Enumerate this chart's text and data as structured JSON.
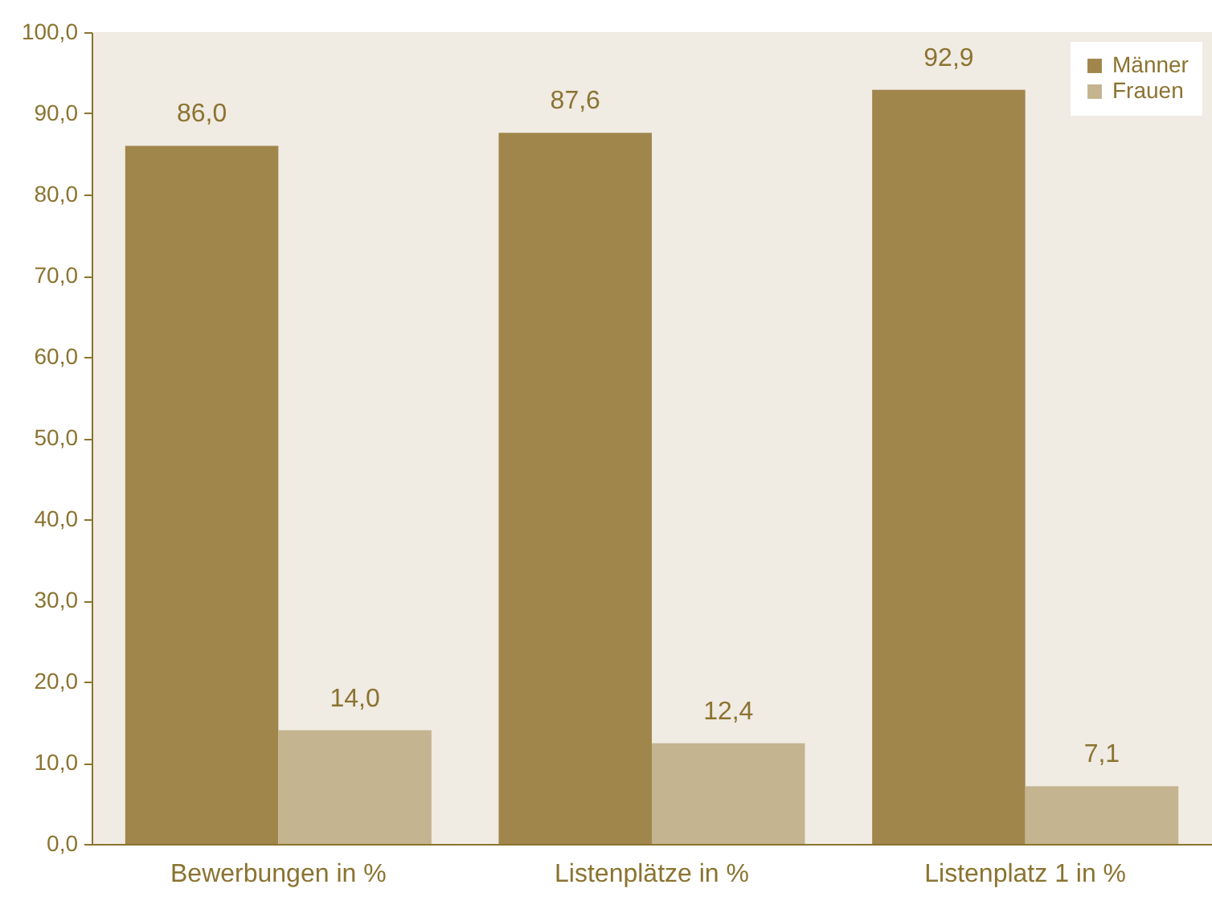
{
  "chart_data": {
    "type": "bar",
    "categories": [
      "Bewerbungen in %",
      "Listenplätze in %",
      "Listenplatz 1 in %"
    ],
    "series": [
      {
        "name": "Männer",
        "color": "#a0864b",
        "values": [
          86.0,
          87.6,
          92.9
        ],
        "value_labels": [
          "86,0",
          "87,6",
          "92,9"
        ]
      },
      {
        "name": "Frauen",
        "color": "#c4b48f",
        "values": [
          14.0,
          12.4,
          7.1
        ],
        "value_labels": [
          "14,0",
          "12,4",
          "7,1"
        ]
      }
    ],
    "ylim": [
      0,
      100
    ],
    "yticks": [
      {
        "value": 0,
        "label": "0,0"
      },
      {
        "value": 10,
        "label": "10,0"
      },
      {
        "value": 20,
        "label": "20,0"
      },
      {
        "value": 30,
        "label": "30,0"
      },
      {
        "value": 40,
        "label": "40,0"
      },
      {
        "value": 50,
        "label": "50,0"
      },
      {
        "value": 60,
        "label": "60,0"
      },
      {
        "value": 70,
        "label": "70,0"
      },
      {
        "value": 80,
        "label": "80,0"
      },
      {
        "value": 90,
        "label": "90,0"
      },
      {
        "value": 100,
        "label": "100,0"
      }
    ],
    "grid": false,
    "legend": "top right"
  }
}
